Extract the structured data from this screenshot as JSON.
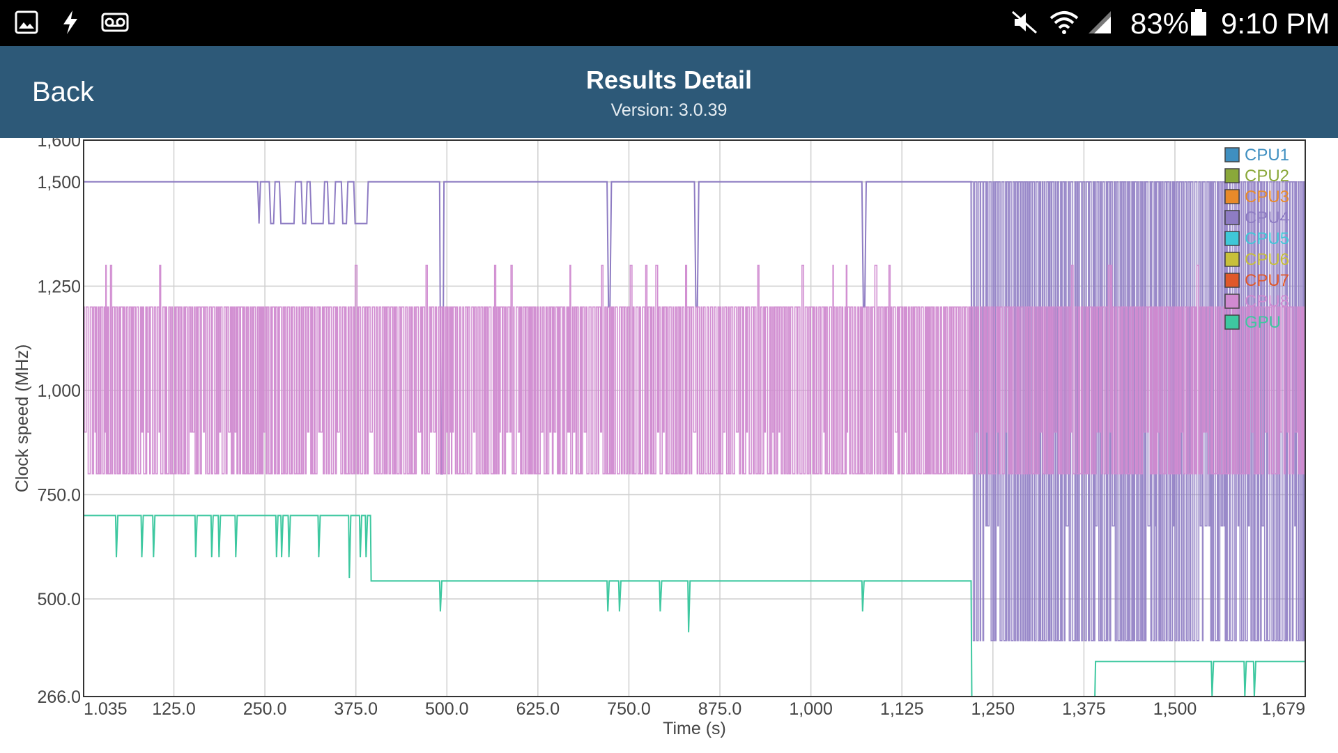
{
  "status_bar": {
    "battery": "83%",
    "time": "9:10 PM",
    "left_icons": [
      "gallery-icon",
      "flash-icon",
      "voicemail-icon"
    ],
    "right_icons": [
      "mute-icon",
      "wifi-icon",
      "signal-icon",
      "battery-icon"
    ]
  },
  "header": {
    "back_label": "Back",
    "title": "Results Detail",
    "subtitle": "Version: 3.0.39",
    "background": "#2d5978"
  },
  "chart_data": {
    "type": "line",
    "xlabel": "Time (s)",
    "ylabel": "Clock speed (MHz)",
    "xlim": [
      1.035,
      1679
    ],
    "ylim": [
      266.0,
      1600
    ],
    "x_ticks": [
      {
        "v": 1.035,
        "label": "1.035"
      },
      {
        "v": 125,
        "label": "125.0"
      },
      {
        "v": 250,
        "label": "250.0"
      },
      {
        "v": 375,
        "label": "375.0"
      },
      {
        "v": 500,
        "label": "500.0"
      },
      {
        "v": 625,
        "label": "625.0"
      },
      {
        "v": 750,
        "label": "750.0"
      },
      {
        "v": 875,
        "label": "875.0"
      },
      {
        "v": 1000,
        "label": "1,000"
      },
      {
        "v": 1125,
        "label": "1,125"
      },
      {
        "v": 1250,
        "label": "1,250"
      },
      {
        "v": 1375,
        "label": "1,375"
      },
      {
        "v": 1500,
        "label": "1,500"
      },
      {
        "v": 1679,
        "label": "1,679"
      }
    ],
    "y_ticks": [
      {
        "v": 266,
        "label": "266.0"
      },
      {
        "v": 500,
        "label": "500.0"
      },
      {
        "v": 750,
        "label": "750.0"
      },
      {
        "v": 1000,
        "label": "1,000"
      },
      {
        "v": 1250,
        "label": "1,250"
      },
      {
        "v": 1500,
        "label": "1,500"
      },
      {
        "v": 1600,
        "label": "1,600"
      }
    ],
    "grid": true,
    "legend_position": "top-right",
    "legend": [
      {
        "name": "CPU1",
        "color": "#3f8fc0"
      },
      {
        "name": "CPU2",
        "color": "#8aa83a"
      },
      {
        "name": "CPU3",
        "color": "#e88a2a"
      },
      {
        "name": "CPU4",
        "color": "#8e7cc3"
      },
      {
        "name": "CPU5",
        "color": "#3fc8d8"
      },
      {
        "name": "CPU6",
        "color": "#c8c03a"
      },
      {
        "name": "CPU7",
        "color": "#e0582a"
      },
      {
        "name": "CPU8",
        "color": "#d08ad0"
      },
      {
        "name": "GPU",
        "color": "#3ec8a0"
      }
    ],
    "series": [
      {
        "name": "CPU4",
        "color": "#8e7cc3",
        "x": [
          1.035,
          240,
          242,
          244,
          256,
          258,
          262,
          264,
          270,
          272,
          290,
          292,
          300,
          302,
          306,
          308,
          312,
          314,
          330,
          332,
          336,
          338,
          345,
          347,
          355,
          357,
          362,
          364,
          372,
          374,
          390,
          392,
          490,
          492,
          494,
          496,
          720,
          722,
          724,
          726,
          840,
          842,
          844,
          846,
          1070,
          1072,
          1074,
          1076,
          1220,
          1221
        ],
        "values": [
          1500,
          1500,
          1400,
          1500,
          1500,
          1400,
          1400,
          1500,
          1500,
          1400,
          1400,
          1500,
          1500,
          1400,
          1400,
          1500,
          1500,
          1400,
          1400,
          1500,
          1500,
          1400,
          1400,
          1500,
          1500,
          1400,
          1400,
          1500,
          1500,
          1400,
          1400,
          1500,
          1500,
          800,
          800,
          1500,
          1500,
          1200,
          1200,
          1500,
          1500,
          1200,
          1200,
          1500,
          1500,
          1200,
          1200,
          1500,
          1500,
          800
        ],
        "oscillation_after_1220": {
          "x_from": 1221,
          "x_to": 1679,
          "low": 400,
          "high": 1500
        }
      },
      {
        "name": "CPU8",
        "color": "#d08ad0",
        "oscillation": {
          "x_from": 1.035,
          "x_to": 1679,
          "low": 800,
          "high": 1200,
          "peaks_to": 1300
        }
      },
      {
        "name": "GPU",
        "color": "#3ec8a0",
        "x": [
          1.035,
          45,
          46,
          48,
          80,
          81,
          83,
          96,
          97,
          99,
          154,
          155,
          157,
          176,
          177,
          179,
          186,
          187,
          189,
          209,
          210,
          212,
          265,
          266,
          268,
          272,
          273,
          275,
          282,
          283,
          285,
          323,
          324,
          326,
          365,
          366,
          368,
          380,
          381,
          383,
          388,
          389,
          391,
          395,
          396,
          490,
          491,
          493,
          720,
          721,
          723,
          736,
          737,
          739,
          792,
          793,
          795,
          831,
          832,
          834,
          1070,
          1071,
          1073,
          1220,
          1221,
          1390,
          1391,
          1550,
          1551,
          1553,
          1595,
          1596,
          1598,
          1608,
          1609,
          1611,
          1679
        ],
        "values": [
          700,
          700,
          600,
          700,
          700,
          600,
          700,
          700,
          600,
          700,
          700,
          600,
          700,
          700,
          600,
          700,
          700,
          600,
          700,
          700,
          600,
          700,
          700,
          600,
          700,
          700,
          600,
          700,
          700,
          600,
          700,
          700,
          600,
          700,
          700,
          550,
          700,
          700,
          600,
          700,
          700,
          600,
          700,
          700,
          543,
          543,
          470,
          543,
          543,
          470,
          543,
          543,
          470,
          543,
          543,
          470,
          543,
          543,
          420,
          543,
          543,
          470,
          543,
          543,
          266,
          266,
          350,
          350,
          266,
          350,
          350,
          266,
          350,
          350,
          266,
          350,
          350
        ]
      }
    ]
  }
}
